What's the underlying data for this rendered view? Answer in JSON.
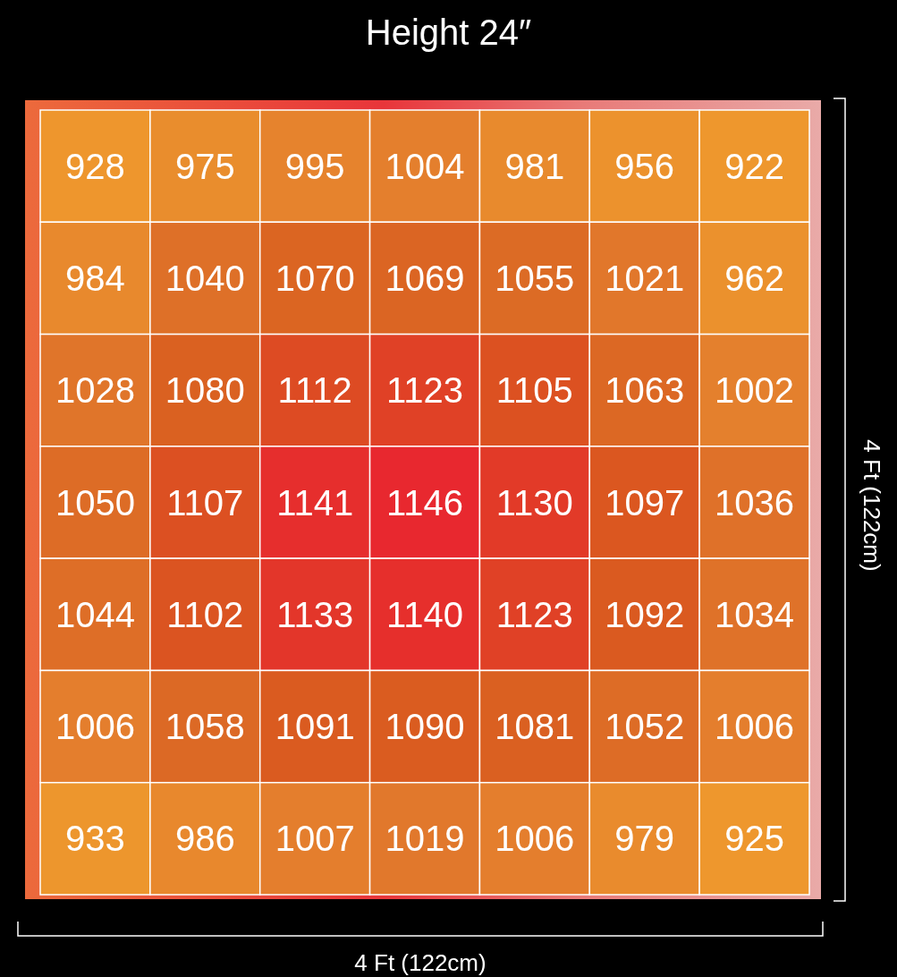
{
  "chart_data": {
    "type": "heatmap",
    "title": "Height 24″",
    "xlabel": "4 Ft (122cm)",
    "ylabel": "4 Ft (122cm)",
    "data_labels": true,
    "categories": [
      null,
      null,
      null,
      null,
      null,
      null,
      null
    ],
    "y_categories": [
      null,
      null,
      null,
      null,
      null,
      null,
      null
    ],
    "cells": [
      [
        928,
        975,
        995,
        1004,
        981,
        956,
        922
      ],
      [
        984,
        1040,
        1070,
        1069,
        1055,
        1021,
        962
      ],
      [
        1028,
        1080,
        1112,
        1123,
        1105,
        1063,
        1002
      ],
      [
        1050,
        1107,
        1141,
        1146,
        1130,
        1097,
        1036
      ],
      [
        1044,
        1102,
        1133,
        1140,
        1123,
        1092,
        1034
      ],
      [
        1006,
        1058,
        1091,
        1090,
        1081,
        1052,
        1006
      ],
      [
        933,
        986,
        1007,
        1019,
        1006,
        979,
        925
      ]
    ]
  }
}
